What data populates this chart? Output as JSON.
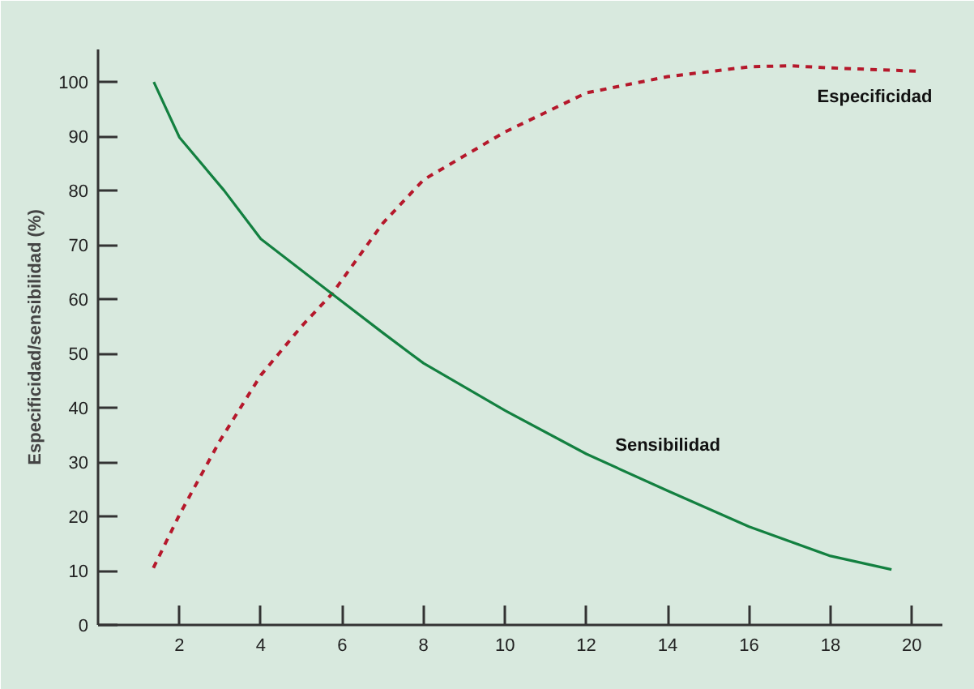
{
  "chart_data": {
    "type": "line",
    "ylabel": "Especificidad/sensibilidad (%)",
    "xlim": [
      0,
      20.75
    ],
    "ylim": [
      0,
      106
    ],
    "xticks": [
      2,
      4,
      6,
      8,
      10,
      12,
      14,
      16,
      18,
      20
    ],
    "yticks": [
      0,
      10,
      20,
      30,
      40,
      50,
      60,
      70,
      80,
      90,
      100
    ],
    "grid": false,
    "series": [
      {
        "name": "Especificidad",
        "color": "#b5182b",
        "line_style": "dashed",
        "x": [
          1.36,
          2,
          3,
          4,
          5,
          5.75,
          7,
          8,
          10,
          12,
          14,
          16,
          17,
          18,
          20.1
        ],
        "values": [
          10.5,
          20.3,
          34,
          46,
          55,
          61,
          74,
          82,
          90.8,
          98,
          101,
          102.8,
          103,
          102.6,
          102
        ]
      },
      {
        "name": "Sensibilidad",
        "color": "#138040",
        "line_style": "solid",
        "x": [
          1.37,
          2,
          3.1,
          4,
          5.75,
          7,
          8,
          10,
          12,
          14,
          16,
          18,
          19.5
        ],
        "values": [
          100,
          89.8,
          80,
          71.1,
          61,
          53.8,
          48.2,
          39.5,
          31.5,
          24.7,
          18.1,
          12.7,
          10.2
        ]
      }
    ]
  }
}
